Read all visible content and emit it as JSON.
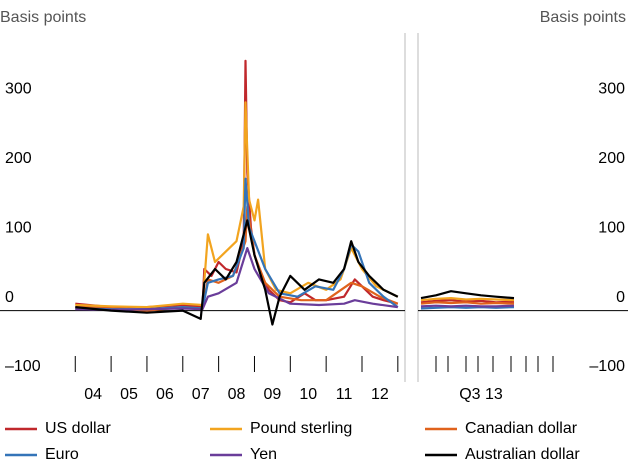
{
  "chart_data": [
    {
      "type": "line",
      "y_label": "Basis points",
      "xlim": [
        2001.9,
        2013.2
      ],
      "ylim": [
        -100,
        400
      ],
      "xticks": [
        {
          "value": 2004.5,
          "label": "04"
        },
        {
          "value": 2005.5,
          "label": "05"
        },
        {
          "value": 2006.5,
          "label": "06"
        },
        {
          "value": 2007.5,
          "label": "07"
        },
        {
          "value": 2008.5,
          "label": "08"
        },
        {
          "value": 2009.5,
          "label": "09"
        },
        {
          "value": 2010.5,
          "label": "10"
        },
        {
          "value": 2011.5,
          "label": "11"
        },
        {
          "value": 2012.5,
          "label": "12"
        }
      ],
      "xtick_marks": [
        2004,
        2005,
        2006,
        2007,
        2008,
        2009,
        2010,
        2011,
        2012,
        2013
      ],
      "yticks": [
        {
          "value": -100,
          "label": "–100"
        },
        0,
        100,
        200,
        300
      ],
      "series": [
        {
          "name": "US dollar",
          "color": "#c0282c",
          "x": [
            2004,
            2005,
            2006,
            2007,
            2007.55,
            2007.6,
            2007.8,
            2008,
            2008.2,
            2008.5,
            2008.7,
            2008.75,
            2008.8,
            2008.9,
            2009,
            2009.2,
            2009.4,
            2009.7,
            2010,
            2010.4,
            2010.7,
            2011,
            2011.5,
            2011.8,
            2012,
            2012.3,
            2012.6,
            2013
          ],
          "values": [
            10,
            5,
            5,
            8,
            5,
            60,
            50,
            70,
            60,
            55,
            100,
            360,
            200,
            120,
            80,
            50,
            30,
            15,
            12,
            25,
            15,
            15,
            20,
            45,
            35,
            20,
            15,
            10
          ]
        },
        {
          "name": "Pound sterling",
          "color": "#f2a41f",
          "x": [
            2004,
            2005,
            2006,
            2007,
            2007.55,
            2007.7,
            2007.9,
            2008.2,
            2008.5,
            2008.7,
            2008.75,
            2008.85,
            2009,
            2009.1,
            2009.3,
            2009.6,
            2010,
            2010.5,
            2011,
            2011.4,
            2011.7,
            2012,
            2012.4,
            2013
          ],
          "values": [
            8,
            6,
            5,
            10,
            8,
            110,
            70,
            85,
            100,
            150,
            300,
            160,
            130,
            160,
            60,
            30,
            25,
            40,
            30,
            45,
            90,
            60,
            35,
            20
          ]
        },
        {
          "name": "Canadian dollar",
          "color": "#e0621c",
          "x": [
            2004,
            2005,
            2006,
            2007,
            2007.55,
            2007.7,
            2008,
            2008.4,
            2008.75,
            2008.8,
            2009,
            2009.3,
            2009.7,
            2010.3,
            2011,
            2011.7,
            2012,
            2012.5,
            2013
          ],
          "values": [
            5,
            3,
            0,
            5,
            3,
            45,
            40,
            50,
            100,
            150,
            80,
            40,
            20,
            15,
            15,
            40,
            35,
            20,
            10
          ]
        },
        {
          "name": "Euro",
          "color": "#3474b8",
          "x": [
            2004,
            2005,
            2006,
            2007,
            2007.55,
            2007.7,
            2008,
            2008.4,
            2008.7,
            2008.75,
            2008.85,
            2009,
            2009.3,
            2009.7,
            2010.2,
            2010.7,
            2011.2,
            2011.5,
            2011.7,
            2011.9,
            2012.2,
            2012.6,
            2013
          ],
          "values": [
            3,
            2,
            2,
            5,
            3,
            40,
            45,
            50,
            90,
            190,
            120,
            100,
            60,
            25,
            20,
            35,
            30,
            60,
            95,
            85,
            40,
            20,
            5
          ]
        },
        {
          "name": "Yen",
          "color": "#6a3d9a",
          "x": [
            2004,
            2005,
            2006,
            2007,
            2007.55,
            2007.7,
            2008,
            2008.5,
            2008.8,
            2009,
            2009.4,
            2010,
            2010.8,
            2011.5,
            2011.8,
            2012.3,
            2013
          ],
          "values": [
            2,
            1,
            2,
            3,
            2,
            20,
            25,
            40,
            90,
            60,
            25,
            10,
            8,
            10,
            15,
            10,
            5
          ]
        },
        {
          "name": "Australian dollar",
          "color": "#000000",
          "x": [
            2004,
            2005,
            2006,
            2007,
            2007.5,
            2007.6,
            2007.9,
            2008.2,
            2008.5,
            2008.8,
            2009,
            2009.3,
            2009.5,
            2009.7,
            2010,
            2010.4,
            2010.8,
            2011.2,
            2011.5,
            2011.7,
            2011.9,
            2012.2,
            2012.6,
            2013
          ],
          "values": [
            5,
            0,
            -3,
            0,
            -12,
            40,
            60,
            45,
            70,
            130,
            80,
            30,
            -20,
            20,
            50,
            30,
            45,
            40,
            60,
            100,
            70,
            50,
            30,
            20
          ]
        }
      ]
    },
    {
      "type": "line",
      "y_label": "Basis points",
      "xlim": [
        6.9,
        13.9
      ],
      "ylim": [
        -100,
        400
      ],
      "xticks": [
        {
          "value": 9.0,
          "label": "Q3 13"
        }
      ],
      "xtick_marks": [
        7.5,
        7.9,
        8.5,
        8.9,
        9.4,
        10.0,
        10.5,
        10.9,
        11.4
      ],
      "yticks": [
        {
          "value": -100,
          "label": "–100"
        },
        0,
        100,
        200,
        300
      ],
      "series": [
        {
          "color": "#c0282c",
          "x": [
            7.0,
            7.5,
            8.0,
            8.5,
            9.0,
            9.5,
            10.1
          ],
          "values": [
            12,
            14,
            15,
            13,
            14,
            12,
            13
          ]
        },
        {
          "color": "#f2a41f",
          "x": [
            7.0,
            7.5,
            8.0,
            8.5,
            9.0,
            9.5,
            10.1
          ],
          "values": [
            15,
            17,
            18,
            16,
            17,
            16,
            15
          ]
        },
        {
          "color": "#e0621c",
          "x": [
            7.0,
            7.5,
            8.0,
            8.5,
            9.0,
            9.5,
            10.1
          ],
          "values": [
            10,
            12,
            11,
            12,
            10,
            11,
            10
          ]
        },
        {
          "color": "#3474b8",
          "x": [
            7.0,
            7.5,
            8.0,
            8.5,
            9.0,
            9.5,
            10.1
          ],
          "values": [
            3,
            4,
            5,
            4,
            5,
            4,
            5
          ]
        },
        {
          "color": "#6a3d9a",
          "x": [
            7.0,
            7.5,
            8.0,
            8.5,
            9.0,
            9.5,
            10.1
          ],
          "values": [
            6,
            7,
            6,
            7,
            6,
            6,
            7
          ]
        },
        {
          "color": "#000000",
          "x": [
            7.0,
            7.5,
            8.0,
            8.5,
            9.0,
            9.5,
            10.1
          ],
          "values": [
            18,
            22,
            28,
            25,
            22,
            20,
            18
          ]
        }
      ]
    }
  ]
}
